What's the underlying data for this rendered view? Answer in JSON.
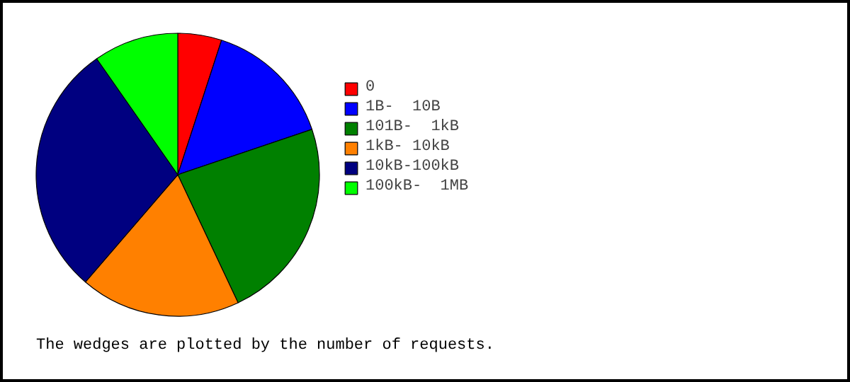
{
  "chart_data": {
    "type": "pie",
    "categories": [
      "0",
      "1B-  10B",
      "101B-  1kB",
      "1kB- 10kB",
      "10kB-100kB",
      "100kB-  1MB"
    ],
    "values": [
      5,
      14.8,
      23.2,
      18.3,
      29,
      9.7
    ],
    "colors": [
      "#ff0000",
      "#0000ff",
      "#008000",
      "#ff8000",
      "#000080",
      "#00ff00"
    ],
    "legend": "top",
    "annotations": [
      "The wedges are plotted by the number of requests."
    ]
  }
}
